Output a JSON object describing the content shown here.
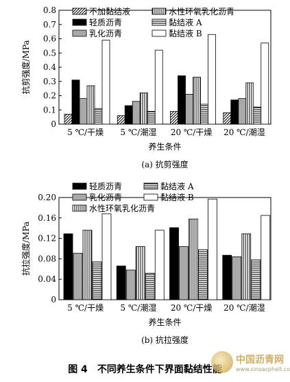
{
  "chart_data": [
    {
      "type": "bar",
      "subcaption": "(a) 抗剪强度",
      "ylabel": "抗剪强度/MPa",
      "xlabel": "养生条件",
      "categories": [
        "5 ℃/干燥",
        "5 ℃/潮湿",
        "20 ℃/干燥",
        "20 ℃/潮湿"
      ],
      "ylim": [
        0,
        0.8
      ],
      "yticks": [
        "0",
        "0.1",
        "0.2",
        "0.3",
        "0.4",
        "0.5",
        "0.6",
        "0.7",
        "0.8"
      ],
      "legend": [
        "不加黏结液",
        "水性环氧乳化沥青",
        "轻质沥青",
        "黏结液 A",
        "乳化沥青",
        "黏结液 B"
      ],
      "series": [
        {
          "name": "不加黏结液",
          "values": [
            0.07,
            0.06,
            0.09,
            0.08
          ]
        },
        {
          "name": "轻质沥青",
          "values": [
            0.31,
            0.13,
            0.34,
            0.17
          ]
        },
        {
          "name": "乳化沥青",
          "values": [
            0.18,
            0.16,
            0.21,
            0.18
          ]
        },
        {
          "name": "水性环氧乳化沥青",
          "values": [
            0.27,
            0.22,
            0.33,
            0.29
          ]
        },
        {
          "name": "黏结液 A",
          "values": [
            0.11,
            0.09,
            0.14,
            0.12
          ]
        },
        {
          "name": "黏结液 B",
          "values": [
            0.59,
            0.52,
            0.63,
            0.57
          ]
        }
      ]
    },
    {
      "type": "bar",
      "subcaption": "(b) 抗拉强度",
      "ylabel": "抗拉强度/MPa",
      "xlabel": "养生条件",
      "categories": [
        "5 ℃/干燥",
        "5 ℃/潮湿",
        "20 ℃/干燥",
        "20 ℃/潮湿"
      ],
      "ylim": [
        0,
        0.2
      ],
      "yticks": [
        "0",
        "0.04",
        "0.08",
        "0.12",
        "0.16",
        "0.20"
      ],
      "legend": [
        "轻质沥青",
        "黏结液 A",
        "乳化沥青",
        "黏结液 B",
        "水性环氧乳化沥青"
      ],
      "series": [
        {
          "name": "轻质沥青",
          "values": [
            0.129,
            0.066,
            0.141,
            0.087
          ]
        },
        {
          "name": "乳化沥青",
          "values": [
            0.091,
            0.058,
            0.104,
            0.084
          ]
        },
        {
          "name": "水性环氧乳化沥青",
          "values": [
            0.136,
            0.104,
            0.158,
            0.129
          ]
        },
        {
          "name": "黏结液 A",
          "values": [
            0.074,
            0.052,
            0.098,
            0.078
          ]
        },
        {
          "name": "黏结液 B",
          "values": [
            0.168,
            0.136,
            0.197,
            0.165
          ]
        }
      ]
    }
  ],
  "figure": {
    "number": "图 4",
    "title": "不同养生条件下界面黏结性能"
  },
  "watermark": {
    "name": "中国沥青网",
    "url": "www.sinoasphalt.com"
  },
  "styles": {
    "不加黏结液": "diagonal",
    "水性环氧乳化沥青": "vertical",
    "轻质沥青": "black",
    "黏结液 A": "horizontal",
    "乳化沥青": "gray",
    "黏结液 B": "white"
  }
}
